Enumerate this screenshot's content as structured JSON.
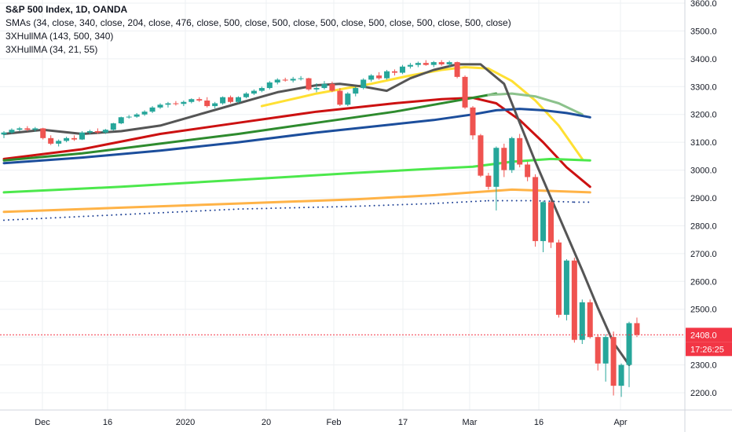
{
  "legend": {
    "title": "S&P 500 Index, 1D, OANDA",
    "line1": "SMAs (34, close, 340, close, 204, close, 476, close, 500, close, 500, close, 500, close, 500, close, 500, close, 500, close)",
    "line2": "3XHullMA (143, 500, 340)",
    "line3": "3XHullMA (34, 21, 55)"
  },
  "price_label": {
    "value": "2408.0",
    "color": "#f23645"
  },
  "countdown_label": {
    "value": "17:26:25",
    "color": "#f23645"
  },
  "chart_data": {
    "type": "line",
    "title": "S&P 500 Index, 1D, OANDA",
    "y_axis": {
      "ticks": [
        "3600.0",
        "3500.0",
        "3400.0",
        "3300.0",
        "3200.0",
        "3100.0",
        "3000.0",
        "2900.0",
        "2800.0",
        "2700.0",
        "2600.0",
        "2500.0",
        "2400.0",
        "2300.0",
        "2200.0"
      ],
      "range": [
        2140,
        3620
      ]
    },
    "x_axis": {
      "ticks": [
        "Dec",
        "16",
        "2020",
        "20",
        "Feb",
        "17",
        "Mar",
        "16",
        "Apr"
      ]
    },
    "grid": true,
    "last_price": 2408.0,
    "candles": [
      {
        "o": 3128,
        "h": 3140,
        "l": 3115,
        "c": 3135
      },
      {
        "o": 3135,
        "h": 3150,
        "l": 3130,
        "c": 3145
      },
      {
        "o": 3145,
        "h": 3155,
        "l": 3140,
        "c": 3150
      },
      {
        "o": 3150,
        "h": 3158,
        "l": 3140,
        "c": 3145
      },
      {
        "o": 3145,
        "h": 3155,
        "l": 3138,
        "c": 3150
      },
      {
        "o": 3150,
        "h": 3152,
        "l": 3110,
        "c": 3115
      },
      {
        "o": 3115,
        "h": 3125,
        "l": 3090,
        "c": 3095
      },
      {
        "o": 3095,
        "h": 3110,
        "l": 3085,
        "c": 3105
      },
      {
        "o": 3105,
        "h": 3120,
        "l": 3100,
        "c": 3115
      },
      {
        "o": 3115,
        "h": 3125,
        "l": 3105,
        "c": 3110
      },
      {
        "o": 3110,
        "h": 3140,
        "l": 3108,
        "c": 3135
      },
      {
        "o": 3135,
        "h": 3145,
        "l": 3128,
        "c": 3140
      },
      {
        "o": 3140,
        "h": 3150,
        "l": 3130,
        "c": 3135
      },
      {
        "o": 3135,
        "h": 3148,
        "l": 3130,
        "c": 3145
      },
      {
        "o": 3145,
        "h": 3170,
        "l": 3142,
        "c": 3168
      },
      {
        "o": 3168,
        "h": 3192,
        "l": 3165,
        "c": 3190
      },
      {
        "o": 3190,
        "h": 3198,
        "l": 3185,
        "c": 3192
      },
      {
        "o": 3192,
        "h": 3205,
        "l": 3188,
        "c": 3200
      },
      {
        "o": 3200,
        "h": 3215,
        "l": 3195,
        "c": 3210
      },
      {
        "o": 3210,
        "h": 3230,
        "l": 3205,
        "c": 3225
      },
      {
        "o": 3225,
        "h": 3240,
        "l": 3220,
        "c": 3235
      },
      {
        "o": 3235,
        "h": 3245,
        "l": 3225,
        "c": 3240
      },
      {
        "o": 3240,
        "h": 3248,
        "l": 3232,
        "c": 3238
      },
      {
        "o": 3238,
        "h": 3250,
        "l": 3230,
        "c": 3245
      },
      {
        "o": 3245,
        "h": 3258,
        "l": 3240,
        "c": 3255
      },
      {
        "o": 3255,
        "h": 3262,
        "l": 3245,
        "c": 3250
      },
      {
        "o": 3250,
        "h": 3262,
        "l": 3225,
        "c": 3230
      },
      {
        "o": 3230,
        "h": 3245,
        "l": 3222,
        "c": 3240
      },
      {
        "o": 3240,
        "h": 3265,
        "l": 3235,
        "c": 3262
      },
      {
        "o": 3262,
        "h": 3268,
        "l": 3240,
        "c": 3245
      },
      {
        "o": 3245,
        "h": 3265,
        "l": 3240,
        "c": 3262
      },
      {
        "o": 3262,
        "h": 3280,
        "l": 3258,
        "c": 3275
      },
      {
        "o": 3275,
        "h": 3290,
        "l": 3270,
        "c": 3285
      },
      {
        "o": 3285,
        "h": 3300,
        "l": 3280,
        "c": 3295
      },
      {
        "o": 3295,
        "h": 3320,
        "l": 3290,
        "c": 3315
      },
      {
        "o": 3315,
        "h": 3330,
        "l": 3308,
        "c": 3325
      },
      {
        "o": 3325,
        "h": 3332,
        "l": 3318,
        "c": 3322
      },
      {
        "o": 3322,
        "h": 3335,
        "l": 3315,
        "c": 3328
      },
      {
        "o": 3328,
        "h": 3338,
        "l": 3322,
        "c": 3330
      },
      {
        "o": 3330,
        "h": 3332,
        "l": 3285,
        "c": 3290
      },
      {
        "o": 3290,
        "h": 3312,
        "l": 3280,
        "c": 3295
      },
      {
        "o": 3295,
        "h": 3320,
        "l": 3290,
        "c": 3310
      },
      {
        "o": 3310,
        "h": 3318,
        "l": 3280,
        "c": 3285
      },
      {
        "o": 3285,
        "h": 3295,
        "l": 3230,
        "c": 3235
      },
      {
        "o": 3235,
        "h": 3280,
        "l": 3230,
        "c": 3275
      },
      {
        "o": 3275,
        "h": 3300,
        "l": 3265,
        "c": 3295
      },
      {
        "o": 3295,
        "h": 3330,
        "l": 3290,
        "c": 3325
      },
      {
        "o": 3325,
        "h": 3345,
        "l": 3318,
        "c": 3340
      },
      {
        "o": 3340,
        "h": 3352,
        "l": 3325,
        "c": 3330
      },
      {
        "o": 3330,
        "h": 3360,
        "l": 3325,
        "c": 3355
      },
      {
        "o": 3355,
        "h": 3362,
        "l": 3340,
        "c": 3350
      },
      {
        "o": 3350,
        "h": 3378,
        "l": 3345,
        "c": 3372
      },
      {
        "o": 3372,
        "h": 3385,
        "l": 3365,
        "c": 3378
      },
      {
        "o": 3378,
        "h": 3390,
        "l": 3370,
        "c": 3385
      },
      {
        "o": 3385,
        "h": 3395,
        "l": 3375,
        "c": 3378
      },
      {
        "o": 3378,
        "h": 3392,
        "l": 3370,
        "c": 3388
      },
      {
        "o": 3388,
        "h": 3395,
        "l": 3375,
        "c": 3380
      },
      {
        "o": 3380,
        "h": 3393,
        "l": 3372,
        "c": 3388
      },
      {
        "o": 3388,
        "h": 3390,
        "l": 3330,
        "c": 3335
      },
      {
        "o": 3335,
        "h": 3340,
        "l": 3220,
        "c": 3225
      },
      {
        "o": 3225,
        "h": 3230,
        "l": 3110,
        "c": 3125
      },
      {
        "o": 3125,
        "h": 3130,
        "l": 2975,
        "c": 2980
      },
      {
        "o": 2980,
        "h": 2990,
        "l": 2930,
        "c": 2940
      },
      {
        "o": 2940,
        "h": 3085,
        "l": 2855,
        "c": 3080
      },
      {
        "o": 3080,
        "h": 3095,
        "l": 2975,
        "c": 3000
      },
      {
        "o": 3000,
        "h": 3120,
        "l": 2990,
        "c": 3115
      },
      {
        "o": 3115,
        "h": 3130,
        "l": 3010,
        "c": 3020
      },
      {
        "o": 3020,
        "h": 3030,
        "l": 2960,
        "c": 2975
      },
      {
        "o": 2975,
        "h": 2985,
        "l": 2725,
        "c": 2745
      },
      {
        "o": 2745,
        "h": 2890,
        "l": 2705,
        "c": 2885
      },
      {
        "o": 2885,
        "h": 2890,
        "l": 2720,
        "c": 2740
      },
      {
        "o": 2740,
        "h": 2750,
        "l": 2470,
        "c": 2480
      },
      {
        "o": 2480,
        "h": 2680,
        "l": 2460,
        "c": 2675
      },
      {
        "o": 2675,
        "h": 2685,
        "l": 2380,
        "c": 2390
      },
      {
        "o": 2390,
        "h": 2535,
        "l": 2375,
        "c": 2525
      },
      {
        "o": 2525,
        "h": 2535,
        "l": 2395,
        "c": 2400
      },
      {
        "o": 2400,
        "h": 2410,
        "l": 2280,
        "c": 2305
      },
      {
        "o": 2305,
        "h": 2410,
        "l": 2240,
        "c": 2400
      },
      {
        "o": 2400,
        "h": 2420,
        "l": 2190,
        "c": 2225
      },
      {
        "o": 2225,
        "h": 2305,
        "l": 2185,
        "c": 2300
      },
      {
        "o": 2300,
        "h": 2455,
        "l": 2220,
        "c": 2450
      },
      {
        "o": 2450,
        "h": 2470,
        "l": 2400,
        "c": 2408
      }
    ],
    "series": [
      {
        "color": "#ffe033",
        "values": [
          [
            33,
            3230
          ],
          [
            40,
            3275
          ],
          [
            47,
            3310
          ],
          [
            52,
            3340
          ],
          [
            56,
            3360
          ],
          [
            59,
            3370
          ],
          [
            62,
            3365
          ],
          [
            65,
            3320
          ],
          [
            68,
            3250
          ],
          [
            71,
            3160
          ],
          [
            74,
            3040
          ]
        ]
      },
      {
        "color": "#cc1111",
        "values": [
          [
            0,
            3040
          ],
          [
            10,
            3075
          ],
          [
            20,
            3130
          ],
          [
            30,
            3170
          ],
          [
            40,
            3210
          ],
          [
            50,
            3240
          ],
          [
            56,
            3255
          ],
          [
            60,
            3260
          ],
          [
            63,
            3240
          ],
          [
            66,
            3180
          ],
          [
            69,
            3100
          ],
          [
            72,
            3010
          ],
          [
            75,
            2940
          ]
        ]
      },
      {
        "color": "#2e8b2e",
        "values": [
          [
            0,
            3035
          ],
          [
            10,
            3060
          ],
          [
            20,
            3095
          ],
          [
            30,
            3130
          ],
          [
            40,
            3170
          ],
          [
            50,
            3210
          ],
          [
            55,
            3235
          ],
          [
            60,
            3260
          ],
          [
            63,
            3275
          ]
        ]
      },
      {
        "color": "#8cc28c",
        "values": [
          [
            62,
            3270
          ],
          [
            65,
            3275
          ],
          [
            68,
            3265
          ],
          [
            71,
            3240
          ],
          [
            74,
            3200
          ]
        ]
      },
      {
        "color": "#1c4e9c",
        "values": [
          [
            0,
            3025
          ],
          [
            10,
            3045
          ],
          [
            20,
            3070
          ],
          [
            30,
            3100
          ],
          [
            40,
            3135
          ],
          [
            50,
            3165
          ],
          [
            55,
            3180
          ],
          [
            60,
            3200
          ],
          [
            63,
            3215
          ],
          [
            66,
            3220
          ],
          [
            69,
            3215
          ],
          [
            72,
            3205
          ],
          [
            75,
            3190
          ]
        ]
      },
      {
        "color": "#4ce84c",
        "values": [
          [
            0,
            2920
          ],
          [
            15,
            2940
          ],
          [
            30,
            2965
          ],
          [
            45,
            2990
          ],
          [
            55,
            3005
          ],
          [
            60,
            3012
          ],
          [
            65,
            3030
          ],
          [
            70,
            3040
          ],
          [
            75,
            3035
          ]
        ]
      },
      {
        "color": "#ffb347",
        "values": [
          [
            0,
            2850
          ],
          [
            15,
            2865
          ],
          [
            30,
            2880
          ],
          [
            45,
            2895
          ],
          [
            55,
            2910
          ],
          [
            60,
            2920
          ],
          [
            65,
            2930
          ],
          [
            70,
            2925
          ],
          [
            75,
            2920
          ]
        ]
      },
      {
        "color": "#555555",
        "values": [
          [
            0,
            3130
          ],
          [
            5,
            3145
          ],
          [
            10,
            3130
          ],
          [
            15,
            3140
          ],
          [
            20,
            3160
          ],
          [
            25,
            3200
          ],
          [
            30,
            3240
          ],
          [
            35,
            3280
          ],
          [
            40,
            3305
          ],
          [
            43,
            3310
          ],
          [
            46,
            3300
          ],
          [
            49,
            3285
          ],
          [
            52,
            3330
          ],
          [
            55,
            3360
          ],
          [
            58,
            3380
          ],
          [
            61,
            3380
          ],
          [
            64,
            3310
          ],
          [
            66,
            3170
          ],
          [
            68,
            3030
          ],
          [
            70,
            2900
          ],
          [
            72,
            2770
          ],
          [
            74,
            2640
          ],
          [
            76,
            2505
          ],
          [
            78,
            2380
          ],
          [
            80,
            2300
          ]
        ]
      }
    ],
    "dotted_series": [
      {
        "color": "#1c3f94",
        "values": [
          [
            0,
            2820
          ],
          [
            15,
            2840
          ],
          [
            30,
            2860
          ],
          [
            45,
            2870
          ],
          [
            55,
            2880
          ],
          [
            62,
            2890
          ],
          [
            68,
            2890
          ],
          [
            73,
            2885
          ],
          [
            75,
            2885
          ]
        ]
      }
    ]
  }
}
